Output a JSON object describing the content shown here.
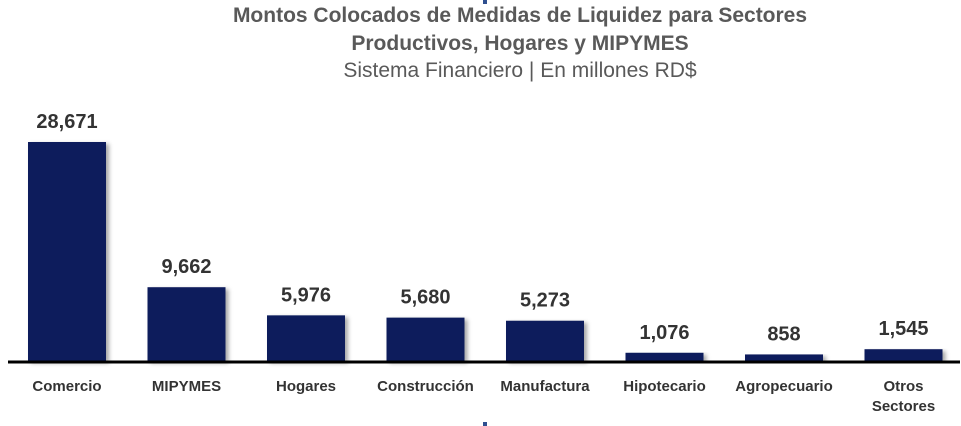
{
  "chart_data": {
    "type": "bar",
    "title": "Montos Colocados de Medidas de Liquidez para Sectores Productivos, Hogares y MIPYMES",
    "title_line1": "Montos Colocados de Medidas de Liquidez para Sectores",
    "title_line2": "Productivos, Hogares y MIPYMES",
    "subtitle": "Sistema Financiero | En millones RD$",
    "categories": [
      "Comercio",
      "MIPYMES",
      "Hogares",
      "Construcción",
      "Manufactura",
      "Hipotecario",
      "Agropecuario",
      "Otros Sectores"
    ],
    "category_lines": [
      [
        "Comercio"
      ],
      [
        "MIPYMES"
      ],
      [
        "Hogares"
      ],
      [
        "Construcción"
      ],
      [
        "Manufactura"
      ],
      [
        "Hipotecario"
      ],
      [
        "Agropecuario"
      ],
      [
        "Otros",
        "Sectores"
      ]
    ],
    "values": [
      28671,
      9662,
      5976,
      5680,
      5273,
      1076,
      858,
      1545
    ],
    "value_labels": [
      "28,671",
      "9,662",
      "5,976",
      "5,680",
      "5,273",
      "1,076",
      "858",
      "1,545"
    ],
    "xlabel": "",
    "ylabel": "",
    "ylim": [
      0,
      28671
    ],
    "grid": false,
    "legend": "none",
    "colors": {
      "bar": "#0d1f5c",
      "axis": "#000000",
      "title": "#595959",
      "labels": "#333333"
    }
  }
}
